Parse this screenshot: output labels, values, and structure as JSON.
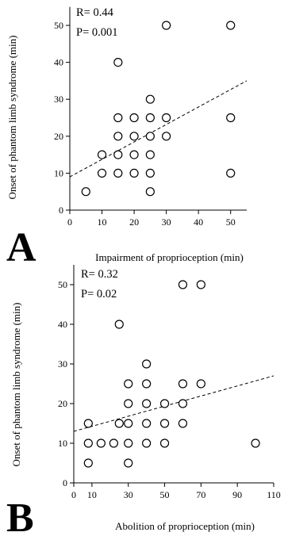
{
  "chart_data": [
    {
      "type": "scatter",
      "panel_letter": "A",
      "xlabel": "Impairment of proprioception (min)",
      "ylabel": "Onset of phantom limb syndrome (min)",
      "xlim": [
        0,
        55
      ],
      "ylim": [
        0,
        55
      ],
      "xticks": [
        0,
        10,
        20,
        30,
        40,
        50
      ],
      "yticks": [
        0,
        10,
        20,
        30,
        40,
        50
      ],
      "annotations": [
        "R= 0.44",
        "P= 0.001"
      ],
      "points": [
        [
          5,
          5
        ],
        [
          10,
          10
        ],
        [
          10,
          15
        ],
        [
          15,
          10
        ],
        [
          15,
          15
        ],
        [
          15,
          20
        ],
        [
          15,
          25
        ],
        [
          15,
          40
        ],
        [
          20,
          10
        ],
        [
          20,
          15
        ],
        [
          20,
          20
        ],
        [
          20,
          25
        ],
        [
          25,
          5
        ],
        [
          25,
          10
        ],
        [
          25,
          15
        ],
        [
          25,
          20
        ],
        [
          25,
          25
        ],
        [
          25,
          30
        ],
        [
          30,
          20
        ],
        [
          30,
          25
        ],
        [
          30,
          50
        ],
        [
          50,
          10
        ],
        [
          50,
          25
        ],
        [
          50,
          50
        ]
      ],
      "trendline": {
        "style": "dashed",
        "from": [
          0,
          9
        ],
        "to": [
          55,
          35
        ]
      }
    },
    {
      "type": "scatter",
      "panel_letter": "B",
      "xlabel": "Abolition of proprioception (min)",
      "ylabel": "Onset of phantom limb syndrome (min)",
      "xlim": [
        0,
        110
      ],
      "ylim": [
        0,
        55
      ],
      "xticks": [
        0,
        10,
        30,
        50,
        70,
        90,
        110
      ],
      "yticks": [
        0,
        10,
        20,
        30,
        40,
        50
      ],
      "annotations": [
        "R= 0.32",
        "P= 0.02"
      ],
      "points": [
        [
          8,
          5
        ],
        [
          8,
          10
        ],
        [
          8,
          15
        ],
        [
          15,
          10
        ],
        [
          22,
          10
        ],
        [
          25,
          15
        ],
        [
          25,
          40
        ],
        [
          30,
          5
        ],
        [
          30,
          10
        ],
        [
          30,
          15
        ],
        [
          30,
          20
        ],
        [
          30,
          25
        ],
        [
          40,
          10
        ],
        [
          40,
          15
        ],
        [
          40,
          20
        ],
        [
          40,
          25
        ],
        [
          40,
          30
        ],
        [
          50,
          10
        ],
        [
          50,
          15
        ],
        [
          50,
          20
        ],
        [
          60,
          15
        ],
        [
          60,
          20
        ],
        [
          60,
          25
        ],
        [
          60,
          50
        ],
        [
          70,
          25
        ],
        [
          70,
          50
        ],
        [
          100,
          10
        ]
      ],
      "trendline": {
        "style": "dashed",
        "from": [
          0,
          13
        ],
        "to": [
          110,
          27
        ]
      }
    }
  ]
}
